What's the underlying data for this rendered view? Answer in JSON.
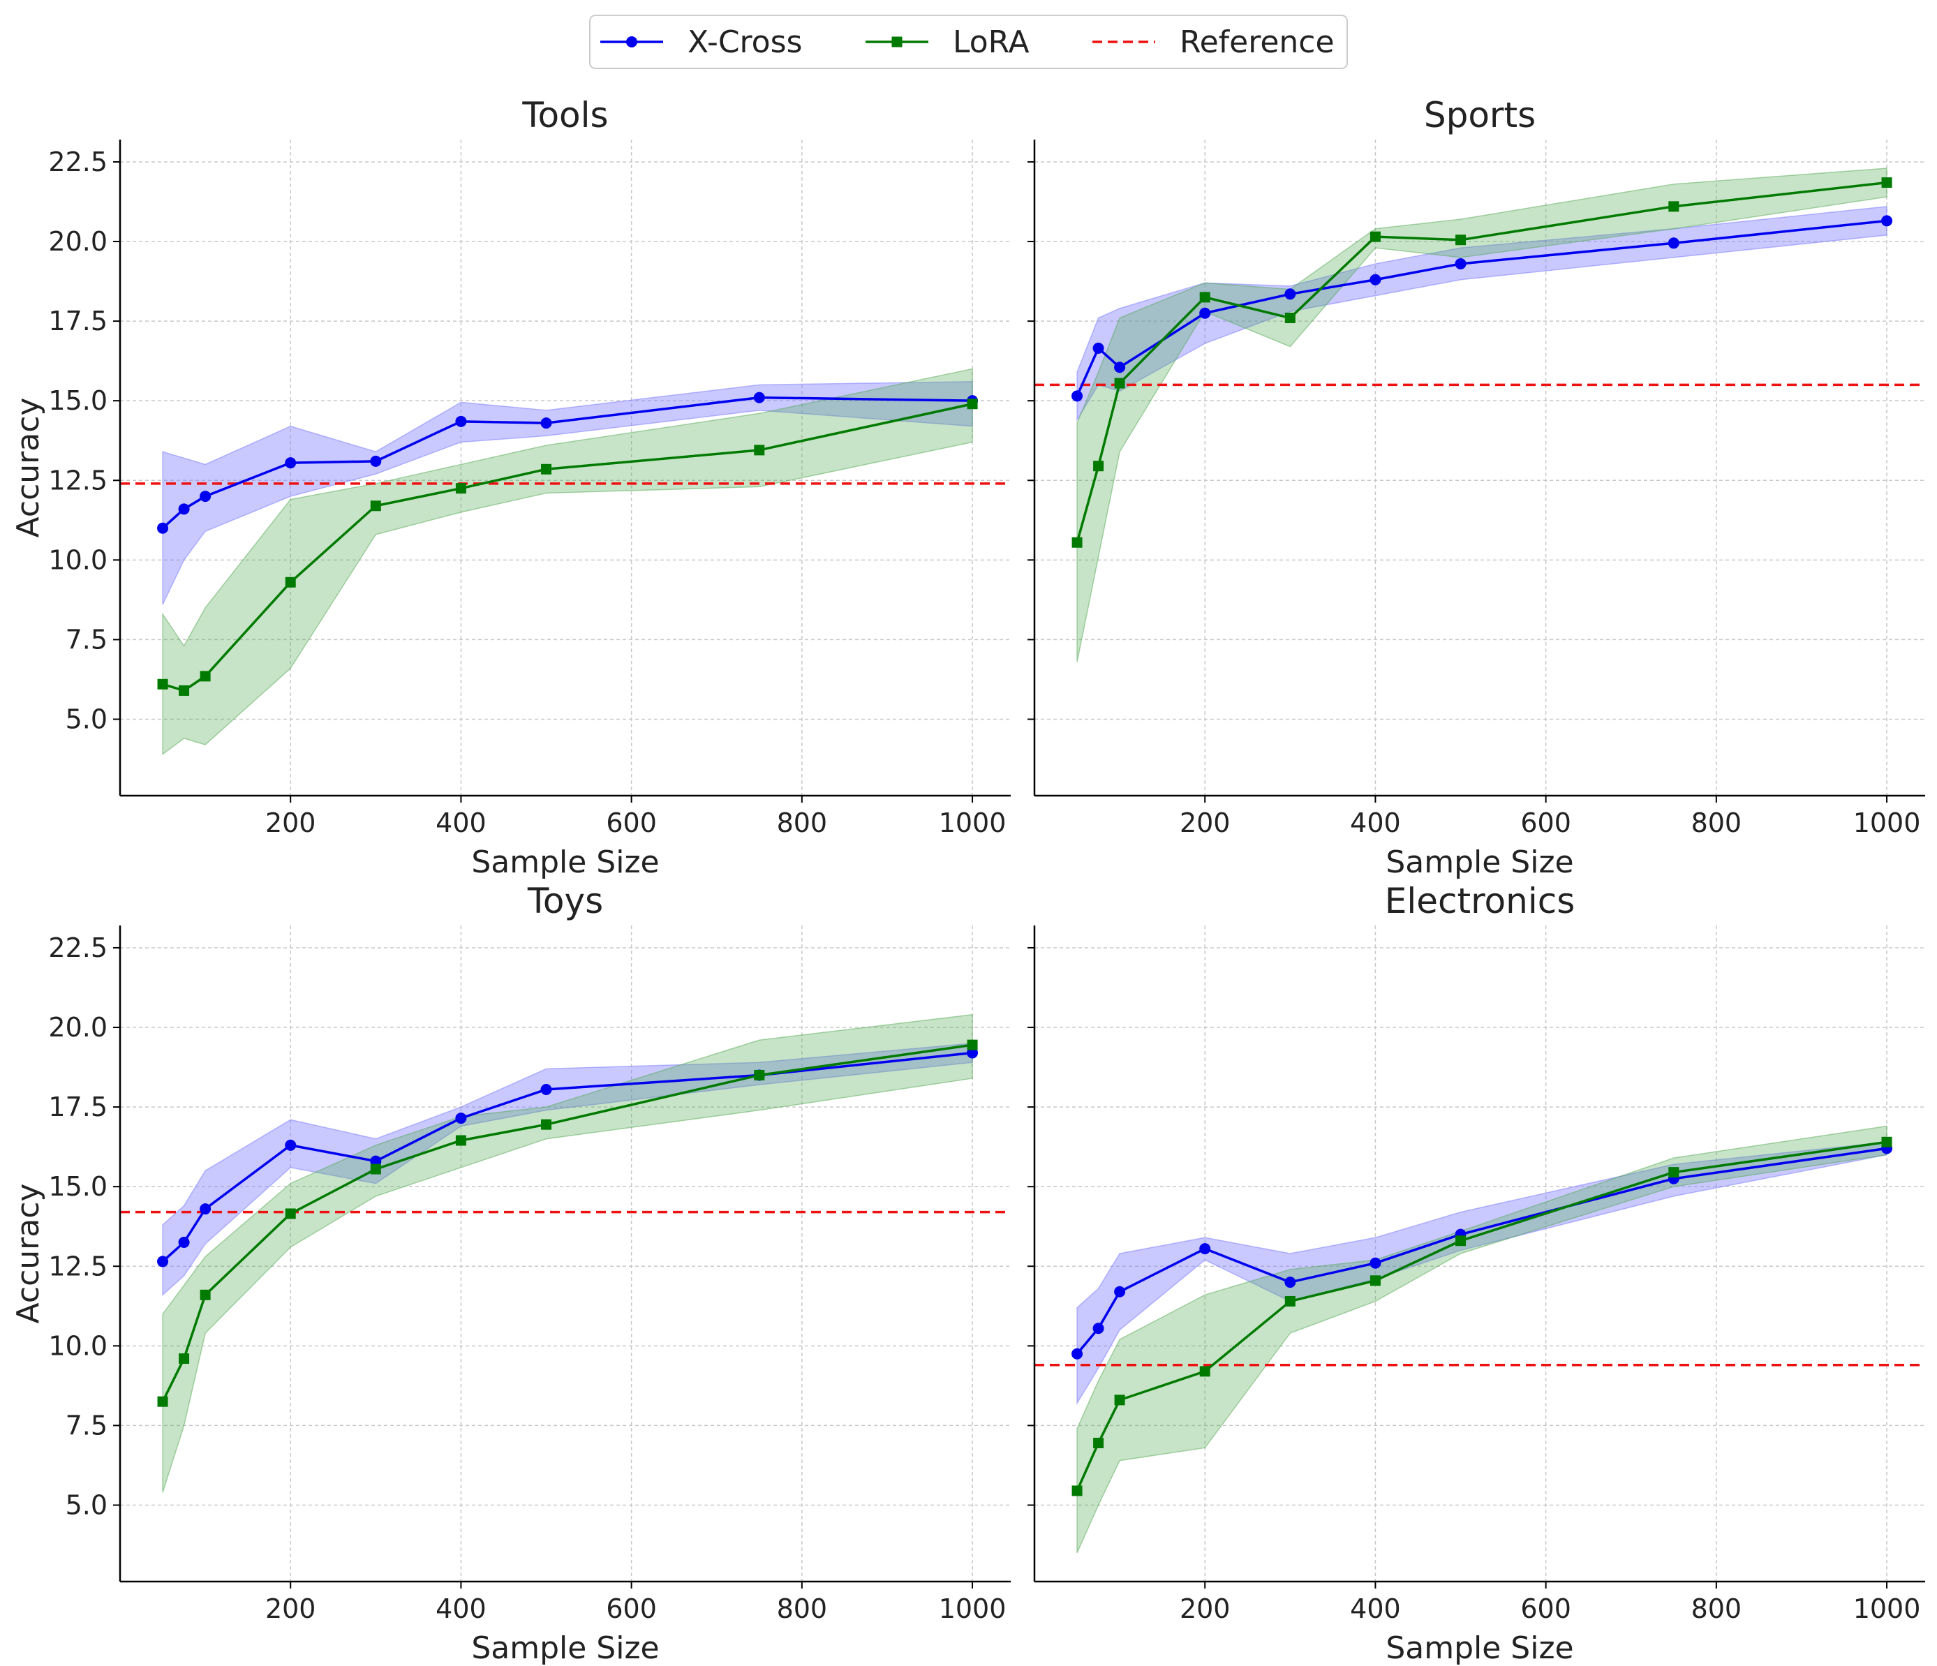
{
  "chart_data": {
    "type": "line",
    "xlabel": "Sample Size",
    "ylabel": "Accuracy",
    "xlim": [
      0,
      1045
    ],
    "ylim": [
      2.6,
      23.2
    ],
    "xticks": [
      200,
      400,
      600,
      800,
      1000
    ],
    "xtick_labels": [
      "200",
      "400",
      "600",
      "800",
      "1000"
    ],
    "yticks": [
      5.0,
      7.5,
      10.0,
      12.5,
      15.0,
      17.5,
      20.0,
      22.5
    ],
    "ytick_labels": [
      "5.0",
      "7.5",
      "10.0",
      "12.5",
      "15.0",
      "17.5",
      "20.0",
      "22.5"
    ],
    "grid": true,
    "legend": {
      "position": "top-center",
      "entries": [
        {
          "label": "X-Cross",
          "color": "#0000ee",
          "marker": "circle",
          "style": "solid"
        },
        {
          "label": "LoRA",
          "color": "#007a00",
          "marker": "square",
          "style": "solid"
        },
        {
          "label": "Reference",
          "color": "#ee1111",
          "marker": "none",
          "style": "dashed"
        }
      ]
    },
    "x": [
      50,
      75,
      100,
      200,
      300,
      400,
      500,
      750,
      1000
    ],
    "panels": [
      {
        "title": "Tools",
        "reference": 12.4,
        "series": [
          {
            "name": "X-Cross",
            "values": [
              11.0,
              11.6,
              12.0,
              13.05,
              13.1,
              14.35,
              14.3,
              15.1,
              15.0
            ],
            "lower": [
              8.6,
              10.0,
              10.9,
              12.0,
              12.7,
              13.7,
              13.9,
              14.7,
              14.2
            ],
            "upper": [
              13.4,
              13.2,
              13.0,
              14.2,
              13.4,
              14.95,
              14.7,
              15.5,
              15.6
            ]
          },
          {
            "name": "LoRA",
            "values": [
              6.1,
              5.9,
              6.35,
              9.3,
              11.7,
              12.25,
              12.85,
              13.45,
              14.9
            ],
            "lower": [
              3.9,
              4.4,
              4.2,
              6.6,
              10.8,
              11.5,
              12.1,
              12.3,
              13.7
            ],
            "upper": [
              8.3,
              7.3,
              8.5,
              11.9,
              12.4,
              13.0,
              13.6,
              14.6,
              16.0
            ]
          }
        ]
      },
      {
        "title": "Sports",
        "reference": 15.5,
        "series": [
          {
            "name": "X-Cross",
            "values": [
              15.15,
              16.65,
              16.05,
              17.75,
              18.35,
              18.8,
              19.3,
              19.95,
              20.65
            ],
            "lower": [
              14.4,
              15.5,
              15.3,
              16.8,
              17.8,
              18.3,
              18.8,
              19.5,
              20.2
            ],
            "upper": [
              15.9,
              17.6,
              17.9,
              18.7,
              18.6,
              19.3,
              19.8,
              20.4,
              21.1
            ]
          },
          {
            "name": "LoRA",
            "values": [
              10.55,
              12.95,
              15.55,
              18.25,
              17.6,
              20.15,
              20.05,
              21.1,
              21.85
            ],
            "lower": [
              6.8,
              10.1,
              13.4,
              17.8,
              16.7,
              19.8,
              19.5,
              20.4,
              21.4
            ],
            "upper": [
              14.3,
              15.9,
              17.6,
              18.7,
              18.5,
              20.4,
              20.7,
              21.8,
              22.3
            ]
          }
        ]
      },
      {
        "title": "Toys",
        "reference": 14.2,
        "series": [
          {
            "name": "X-Cross",
            "values": [
              12.65,
              13.25,
              14.3,
              16.3,
              15.8,
              17.15,
              18.05,
              18.5,
              19.2
            ],
            "lower": [
              11.6,
              12.2,
              13.2,
              15.6,
              15.1,
              16.9,
              17.4,
              18.2,
              18.9
            ],
            "upper": [
              13.8,
              14.4,
              15.5,
              17.1,
              16.5,
              17.5,
              18.7,
              18.9,
              19.5
            ]
          },
          {
            "name": "LoRA",
            "values": [
              8.25,
              9.6,
              11.6,
              14.15,
              15.55,
              16.45,
              16.95,
              18.5,
              19.45
            ],
            "lower": [
              5.4,
              7.5,
              10.4,
              13.1,
              14.7,
              15.6,
              16.5,
              17.4,
              18.4
            ],
            "upper": [
              11.0,
              11.9,
              12.8,
              15.1,
              16.3,
              17.2,
              17.5,
              19.6,
              20.4
            ]
          }
        ]
      },
      {
        "title": "Electronics",
        "reference": 9.4,
        "series": [
          {
            "name": "X-Cross",
            "values": [
              9.75,
              10.55,
              11.7,
              13.05,
              12.0,
              12.6,
              13.5,
              15.25,
              16.2
            ],
            "lower": [
              8.2,
              9.3,
              10.5,
              12.7,
              11.4,
              12.1,
              13.0,
              14.7,
              16.0
            ],
            "upper": [
              11.2,
              11.8,
              12.9,
              13.4,
              12.9,
              13.4,
              14.2,
              15.7,
              16.4
            ]
          },
          {
            "name": "LoRA",
            "values": [
              5.45,
              6.95,
              8.3,
              9.2,
              11.4,
              12.05,
              13.3,
              15.45,
              16.4
            ],
            "lower": [
              3.5,
              5.0,
              6.4,
              6.8,
              10.4,
              11.4,
              12.9,
              15.0,
              16.0
            ],
            "upper": [
              7.4,
              8.9,
              10.2,
              11.6,
              12.4,
              12.7,
              13.6,
              15.9,
              16.9
            ]
          }
        ]
      }
    ]
  }
}
